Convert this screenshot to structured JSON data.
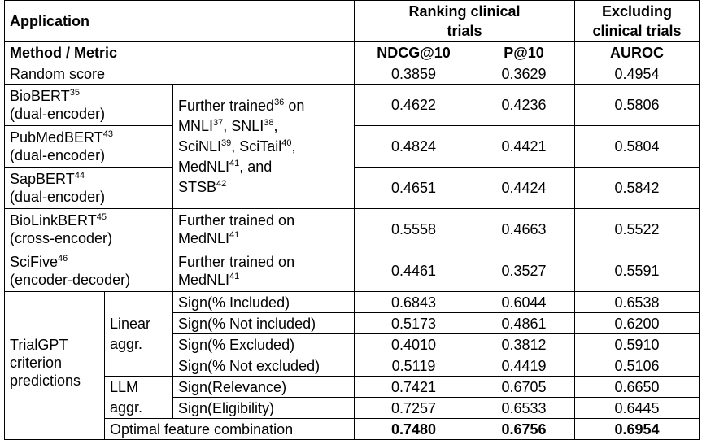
{
  "header": {
    "application": "Application",
    "ranking": "Ranking clinical trials",
    "excluding": "Excluding clinical trials",
    "method_metric": "Method / Metric",
    "ndcg": "NDCG@10",
    "p10": "P@10",
    "auroc": "AUROC"
  },
  "random": {
    "label": "Random score",
    "ndcg": "0.3859",
    "p10": "0.3629",
    "auroc": "0.4954"
  },
  "biobert": {
    "name": "BioBERT",
    "sup": "35",
    "type": "(dual-encoder)",
    "ndcg": "0.4622",
    "p10": "0.4236",
    "auroc": "0.5806"
  },
  "pubmedbert": {
    "name": "PubMedBERT",
    "sup": "43",
    "type": "(dual-encoder)",
    "ndcg": "0.4824",
    "p10": "0.4421",
    "auroc": "0.5804"
  },
  "sapbert": {
    "name": "SapBERT",
    "sup": "44",
    "type": "(dual-encoder)",
    "ndcg": "0.4651",
    "p10": "0.4424",
    "auroc": "0.5842"
  },
  "further_multi": {
    "t1": "Further trained",
    "s1": "36",
    "t2": " on",
    "t3": "MNLI",
    "s3": "37",
    "t4": ", SNLI",
    "s4": "38",
    "t5": ",",
    "t6": "SciNLI",
    "s6": "39",
    "t7": ", SciTail",
    "s7": "40",
    "t8": ",",
    "t9": "MedNLI",
    "s9": "41",
    "t10": ", and",
    "t11": "STSB",
    "s11": "42"
  },
  "biolinkbert": {
    "name": "BioLinkBERT",
    "sup": "45",
    "type": "(cross-encoder)",
    "desc1": "Further trained on",
    "desc2": "MedNLI",
    "desc_sup": "41",
    "ndcg": "0.5558",
    "p10": "0.4663",
    "auroc": "0.5522"
  },
  "scifive": {
    "name": "SciFive",
    "sup": "46",
    "type": "(encoder-decoder)",
    "desc1": "Further trained on",
    "desc2": "MedNLI",
    "desc_sup": "41",
    "ndcg": "0.4461",
    "p10": "0.3527",
    "auroc": "0.5591"
  },
  "trialgpt": {
    "l1": "TrialGPT",
    "l2": "criterion",
    "l3": "predictions",
    "linear1": "Linear",
    "linear2": "aggr.",
    "llm1": "LLM",
    "llm2": "aggr.",
    "rows": [
      {
        "label": "Sign(% Included)",
        "ndcg": "0.6843",
        "p10": "0.6044",
        "auroc": "0.6538"
      },
      {
        "label": "Sign(% Not included)",
        "ndcg": "0.5173",
        "p10": "0.4861",
        "auroc": "0.6200"
      },
      {
        "label": "Sign(% Excluded)",
        "ndcg": "0.4010",
        "p10": "0.3812",
        "auroc": "0.5910"
      },
      {
        "label": "Sign(% Not excluded)",
        "ndcg": "0.5119",
        "p10": "0.4419",
        "auroc": "0.5106"
      },
      {
        "label": "Sign(Relevance)",
        "ndcg": "0.7421",
        "p10": "0.6705",
        "auroc": "0.6650"
      },
      {
        "label": "Sign(Eligibility)",
        "ndcg": "0.7257",
        "p10": "0.6533",
        "auroc": "0.6445"
      }
    ],
    "optimal": {
      "label": "Optimal feature combination",
      "ndcg": "0.7480",
      "p10": "0.6756",
      "auroc": "0.6954"
    }
  }
}
